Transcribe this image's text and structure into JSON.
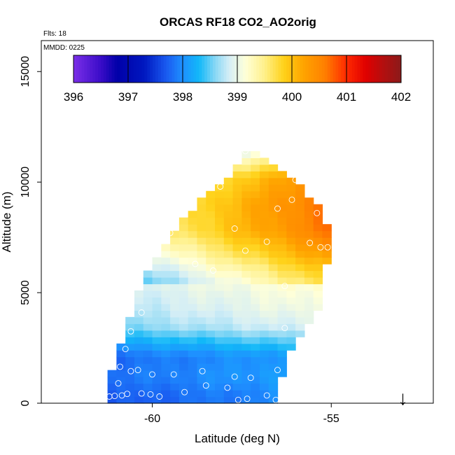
{
  "chart_data": {
    "type": "heatmap",
    "title": "ORCAS RF18 CO2_AO2orig",
    "annotations": {
      "flights": "Flts: 18",
      "date": "MMDD: 0225"
    },
    "xlabel": "Latitude (deg N)",
    "ylabel": "Altitude (m)",
    "xlim": [
      -63.1,
      -52.15
    ],
    "ylim": [
      0,
      16400
    ],
    "x_ticks": [
      {
        "value": -60,
        "label": "-60"
      },
      {
        "value": -55,
        "label": "-55"
      }
    ],
    "y_ticks": [
      {
        "value": 0,
        "label": "0"
      },
      {
        "value": 5000,
        "label": "5000"
      },
      {
        "value": 10000,
        "label": "10000"
      },
      {
        "value": 15000,
        "label": "15000"
      }
    ],
    "colorbar": {
      "min": 396,
      "max": 402,
      "ticks": [
        {
          "value": 396,
          "label": "396"
        },
        {
          "value": 397,
          "label": "397"
        },
        {
          "value": 398,
          "label": "398"
        },
        {
          "value": 399,
          "label": "399"
        },
        {
          "value": 400,
          "label": "400"
        },
        {
          "value": 401,
          "label": "401"
        },
        {
          "value": 402,
          "label": "402"
        }
      ],
      "color_stops": [
        {
          "v": 396.0,
          "c": "#7B2FE8"
        },
        {
          "v": 396.5,
          "c": "#3A0CC8"
        },
        {
          "v": 396.8,
          "c": "#0000A8"
        },
        {
          "v": 397.3,
          "c": "#0018C0"
        },
        {
          "v": 397.7,
          "c": "#1A5AF0"
        },
        {
          "v": 398.0,
          "c": "#1E90FF"
        },
        {
          "v": 398.3,
          "c": "#12B8F8"
        },
        {
          "v": 398.6,
          "c": "#8AD8F5"
        },
        {
          "v": 398.85,
          "c": "#D4EEF6"
        },
        {
          "v": 399.15,
          "c": "#FFFFD8"
        },
        {
          "v": 399.5,
          "c": "#FFF08A"
        },
        {
          "v": 399.85,
          "c": "#FFD21A"
        },
        {
          "v": 400.2,
          "c": "#FFA500"
        },
        {
          "v": 400.6,
          "c": "#FF8000"
        },
        {
          "v": 401.0,
          "c": "#FF2A00"
        },
        {
          "v": 401.35,
          "c": "#E00000"
        },
        {
          "v": 401.7,
          "c": "#B01010"
        },
        {
          "v": 402.0,
          "c": "#8B1A1A"
        }
      ]
    },
    "grid": false,
    "cell_size": {
      "lat": 0.25,
      "alt": 300
    },
    "profile": [
      {
        "alt": 300,
        "co2": 397.9
      },
      {
        "alt": 1200,
        "co2": 398.05
      },
      {
        "alt": 2100,
        "co2": 398.0
      },
      {
        "alt": 2800,
        "co2": 398.4
      },
      {
        "alt": 3500,
        "co2": 398.8
      },
      {
        "alt": 4300,
        "co2": 398.95
      },
      {
        "alt": 5200,
        "co2": 399.05
      },
      {
        "alt": 6000,
        "co2": 399.35
      },
      {
        "alt": 6800,
        "co2": 399.7
      },
      {
        "alt": 7800,
        "co2": 400.05
      },
      {
        "alt": 9000,
        "co2": 400.1
      },
      {
        "alt": 10200,
        "co2": 399.9
      },
      {
        "alt": 11000,
        "co2": 399.3
      },
      {
        "alt": 11400,
        "co2": 398.9
      }
    ],
    "horizontal_gradient": {
      "lat_ref": -57.5,
      "per_deg_low": 0.06,
      "per_deg_high": 0.25,
      "split_alt": 5500
    },
    "domain_edges": [
      {
        "alt": 0,
        "lat_min": -61.3,
        "lat_max": -56.6
      },
      {
        "alt": 1800,
        "lat_min": -61.1,
        "lat_max": -56.3
      },
      {
        "alt": 3100,
        "lat_min": -60.8,
        "lat_max": -55.8
      },
      {
        "alt": 4400,
        "lat_min": -60.5,
        "lat_max": -55.3
      },
      {
        "alt": 5800,
        "lat_min": -60.2,
        "lat_max": -55.2
      },
      {
        "alt": 7100,
        "lat_min": -59.7,
        "lat_max": -55.0
      },
      {
        "alt": 8600,
        "lat_min": -59.0,
        "lat_max": -55.2
      },
      {
        "alt": 9800,
        "lat_min": -58.2,
        "lat_max": -55.9
      },
      {
        "alt": 10800,
        "lat_min": -57.6,
        "lat_max": -56.7
      },
      {
        "alt": 11300,
        "lat_min": -57.5,
        "lat_max": -57.1
      }
    ],
    "sample_points": [
      [
        -61.2,
        300
      ],
      [
        -61.05,
        330
      ],
      [
        -60.85,
        350
      ],
      [
        -60.7,
        420
      ],
      [
        -60.3,
        440
      ],
      [
        -60.05,
        400
      ],
      [
        -59.8,
        300
      ],
      [
        -59.1,
        500
      ],
      [
        -58.5,
        800
      ],
      [
        -57.9,
        700
      ],
      [
        -57.6,
        150
      ],
      [
        -57.35,
        200
      ],
      [
        -56.8,
        350
      ],
      [
        -56.55,
        150
      ],
      [
        -60.95,
        900
      ],
      [
        -60.6,
        1450
      ],
      [
        -60.4,
        1500
      ],
      [
        -60.0,
        1300
      ],
      [
        -59.4,
        1300
      ],
      [
        -58.6,
        1450
      ],
      [
        -57.7,
        1200
      ],
      [
        -57.25,
        1150
      ],
      [
        -56.5,
        1500
      ],
      [
        -60.9,
        1650
      ],
      [
        -60.75,
        2450
      ],
      [
        -60.6,
        3250
      ],
      [
        -60.3,
        4100
      ],
      [
        -56.3,
        3400
      ],
      [
        -59.9,
        7100
      ],
      [
        -58.8,
        6300
      ],
      [
        -58.3,
        6000
      ],
      [
        -59.5,
        7700
      ],
      [
        -57.4,
        6900
      ],
      [
        -56.3,
        5300
      ],
      [
        -56.8,
        7300
      ],
      [
        -57.7,
        7900
      ],
      [
        -56.5,
        8800
      ],
      [
        -56.1,
        9200
      ],
      [
        -55.6,
        7250
      ],
      [
        -55.3,
        7050
      ],
      [
        -55.1,
        7050
      ],
      [
        -55.4,
        8600
      ],
      [
        -58.1,
        9800
      ],
      [
        -56.0,
        10100
      ],
      [
        -57.4,
        11400
      ]
    ],
    "arrow_marker": {
      "lat": -53.0,
      "label": "↓"
    }
  }
}
